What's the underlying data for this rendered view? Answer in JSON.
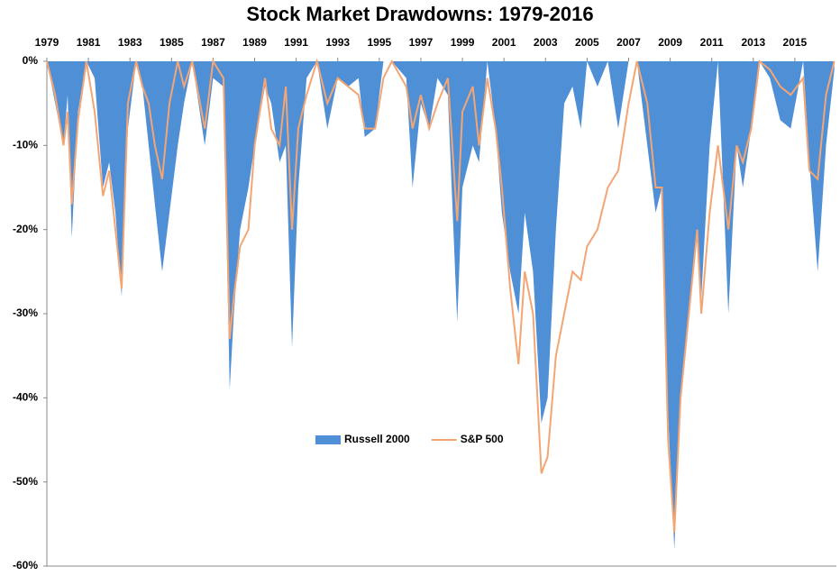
{
  "chart_data": {
    "type": "area",
    "title": "Stock Market Drawdowns: 1979-2016",
    "x": [
      1979.0,
      1979.4,
      1979.8,
      1980.0,
      1980.2,
      1980.5,
      1980.9,
      1981.3,
      1981.7,
      1982.0,
      1982.3,
      1982.6,
      1982.9,
      1983.3,
      1983.6,
      1983.9,
      1984.2,
      1984.55,
      1984.9,
      1985.3,
      1985.6,
      1986.0,
      1986.6,
      1987.0,
      1987.5,
      1987.8,
      1988.0,
      1988.3,
      1988.7,
      1989.0,
      1989.5,
      1989.8,
      1990.2,
      1990.5,
      1990.8,
      1991.1,
      1991.5,
      1992.0,
      1992.5,
      1993.0,
      1993.5,
      1994.0,
      1994.3,
      1994.8,
      1995.2,
      1995.6,
      1996.3,
      1996.6,
      1997.0,
      1997.4,
      1997.8,
      1998.3,
      1998.75,
      1999.0,
      1999.5,
      1999.8,
      2000.2,
      2000.6,
      2000.9,
      2001.3,
      2001.7,
      2002.0,
      2002.4,
      2002.8,
      2003.1,
      2003.5,
      2003.9,
      2004.3,
      2004.7,
      2005.0,
      2005.5,
      2006.0,
      2006.5,
      2007.0,
      2007.4,
      2007.9,
      2008.3,
      2008.6,
      2008.9,
      2009.2,
      2009.5,
      2009.9,
      2010.3,
      2010.5,
      2010.9,
      2011.3,
      2011.8,
      2012.2,
      2012.5,
      2012.9,
      2013.3,
      2013.8,
      2014.3,
      2014.8,
      2015.4,
      2015.7,
      2016.1,
      2016.5,
      2016.9
    ],
    "series": [
      {
        "name": "Russell 2000",
        "type": "area",
        "color": "#4f8fd6",
        "values": [
          0,
          -5,
          -10,
          -4,
          -21,
          -6,
          0,
          -2,
          -15,
          -12,
          -18,
          -28,
          -8,
          0,
          -3,
          -10,
          -17,
          -25,
          -18,
          -10,
          -5,
          0,
          -10,
          -2,
          -3,
          -39,
          -30,
          -20,
          -15,
          -10,
          -3,
          -5,
          -12,
          -10,
          -34,
          -15,
          -2,
          0,
          -8,
          -2,
          -3,
          -2,
          -9,
          -8,
          0,
          0,
          -2,
          -15,
          -5,
          -8,
          -2,
          -4,
          -31,
          -15,
          -10,
          -12,
          0,
          -8,
          -18,
          -25,
          -30,
          -18,
          -25,
          -43,
          -40,
          -20,
          -5,
          -3,
          -8,
          0,
          -3,
          0,
          -8,
          0,
          0,
          -10,
          -18,
          -15,
          -42,
          -58,
          -40,
          -30,
          -20,
          -28,
          -10,
          0,
          -30,
          -10,
          -15,
          -8,
          0,
          -2,
          -7,
          -8,
          0,
          -12,
          -25,
          -10,
          -1
        ]
      },
      {
        "name": "S&P 500",
        "type": "line",
        "color": "#f4a574",
        "values": [
          0,
          -4,
          -10,
          -6,
          -17,
          -7,
          0,
          -6,
          -16,
          -13,
          -20,
          -27,
          -5,
          0,
          -3,
          -5,
          -10,
          -14,
          -5,
          0,
          -3,
          0,
          -8,
          0,
          -2,
          -33,
          -28,
          -22,
          -20,
          -10,
          -2,
          -8,
          -10,
          -3,
          -20,
          -8,
          -4,
          0,
          -5,
          -2,
          -3,
          -4,
          -8,
          -8,
          -2,
          0,
          -3,
          -8,
          -4,
          -8,
          -5,
          -2,
          -19,
          -6,
          -3,
          -10,
          -2,
          -8,
          -15,
          -27,
          -36,
          -25,
          -30,
          -49,
          -47,
          -35,
          -30,
          -25,
          -26,
          -22,
          -20,
          -15,
          -13,
          -5,
          0,
          -5,
          -15,
          -15,
          -45,
          -56,
          -40,
          -30,
          -20,
          -30,
          -18,
          -10,
          -20,
          -10,
          -12,
          -8,
          0,
          -1,
          -3,
          -4,
          -2,
          -13,
          -14,
          -4,
          0
        ]
      }
    ],
    "xlim": [
      1979,
      2017
    ],
    "xticks": [
      1979,
      1981,
      1983,
      1985,
      1987,
      1989,
      1991,
      1993,
      1995,
      1997,
      1999,
      2001,
      2003,
      2005,
      2007,
      2009,
      2011,
      2013,
      2015
    ],
    "ylim": [
      -60,
      0
    ],
    "yticks": [
      {
        "value": 0,
        "label": "0%"
      },
      {
        "value": -10,
        "label": "-10%"
      },
      {
        "value": -20,
        "label": "-20%"
      },
      {
        "value": -30,
        "label": "-30%"
      },
      {
        "value": -40,
        "label": "-40%"
      },
      {
        "value": -50,
        "label": "-50%"
      },
      {
        "value": -60,
        "label": "-60%"
      }
    ],
    "legend": "center"
  }
}
